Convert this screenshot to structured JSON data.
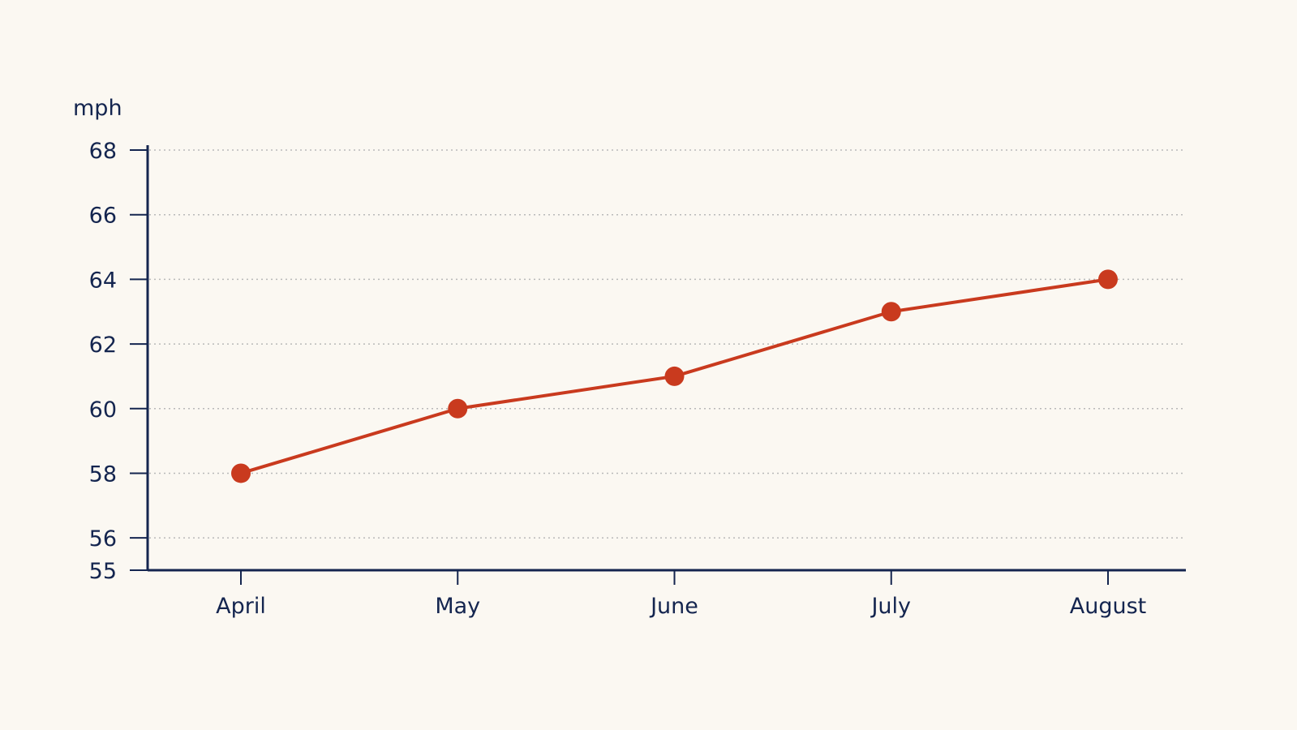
{
  "colors": {
    "background": "#fbf8f2",
    "axis": "#14254f",
    "series": "#c93a1e",
    "grid": "#b9b9b9"
  },
  "chart_data": {
    "type": "line",
    "title": "",
    "xlabel": "",
    "ylabel": "mph",
    "categories": [
      "April",
      "May",
      "June",
      "July",
      "August"
    ],
    "series": [
      {
        "values": [
          58.0,
          60.0,
          61.0,
          63.0,
          64.0
        ]
      }
    ],
    "yticks": [
      55,
      56,
      58,
      60,
      62,
      64,
      66,
      68
    ],
    "ylim": [
      55,
      68
    ],
    "grid": true,
    "legend": "none",
    "markers": true
  }
}
